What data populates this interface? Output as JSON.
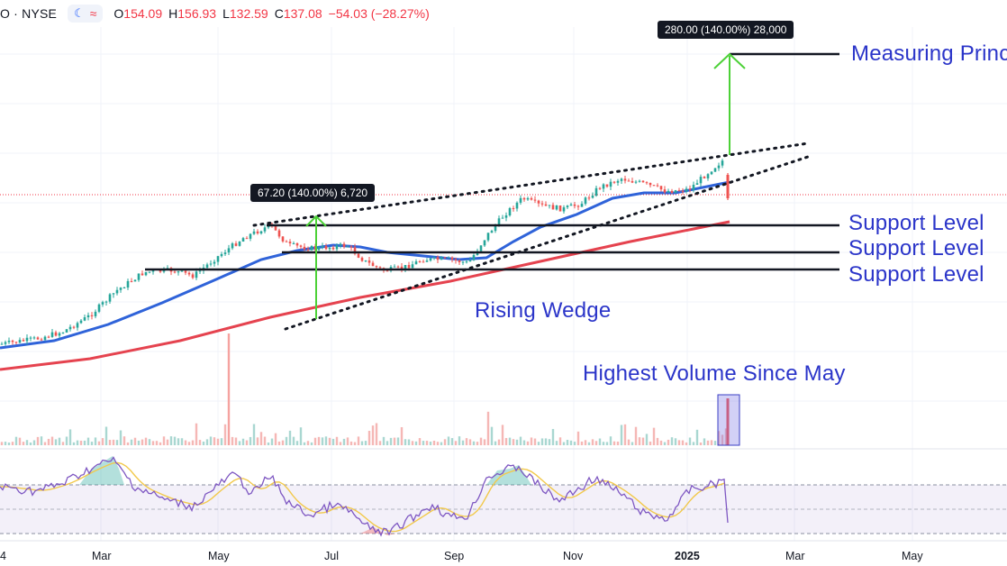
{
  "header": {
    "symbol": "O · NYSE",
    "ohlc": [
      {
        "key": "O",
        "value": "154.09"
      },
      {
        "key": "H",
        "value": "156.93"
      },
      {
        "key": "L",
        "value": "132.59"
      },
      {
        "key": "C",
        "value": "137.08"
      }
    ],
    "change": "−54.03 (−28.27%)",
    "icons": [
      "moon-icon",
      "wave-icon"
    ]
  },
  "annotations": {
    "measuring": "Measuring Principle",
    "support1": "Support Level",
    "support2": "Support Level",
    "support3": "Support Level",
    "rising_wedge": "Rising Wedge",
    "highest_volume": "Highest Volume Since May",
    "measure_tag_upper": "280.00 (140.00%) 28,000",
    "measure_tag_lower": "67.20 (140.00%) 6,720"
  },
  "colors": {
    "up": "#26a69a",
    "down": "#ef5350",
    "ma_fast": "#2f63d9",
    "ma_slow": "#e5434f",
    "arrow": "#4cd137",
    "annotation": "#2b35c9",
    "rsi": "#7e57c2",
    "rsi_signal": "#f2c94c"
  },
  "chart_data": {
    "type": "candlestick",
    "x_axis_labels": [
      "4",
      "Mar",
      "May",
      "Jul",
      "Sep",
      "Nov",
      "2025",
      "Mar",
      "May"
    ],
    "indicators": [
      "price",
      "moving-average-fast",
      "moving-average-slow",
      "volume",
      "rsi"
    ],
    "last_candle": {
      "open": 154.09,
      "high": 156.93,
      "low": 132.59,
      "close": 137.08,
      "change": -54.03,
      "change_pct": -28.27
    },
    "measured_moves": [
      {
        "label": "280.00 (140.00%) 28,000",
        "value": 280.0,
        "pct": 140.0,
        "ticks": 28000
      },
      {
        "label": "67.20 (140.00%) 6,720",
        "value": 67.2,
        "pct": 140.0,
        "ticks": 6720
      }
    ],
    "pattern": "Rising Wedge",
    "support_levels": 3,
    "volume_note": "Highest Volume Since May"
  }
}
